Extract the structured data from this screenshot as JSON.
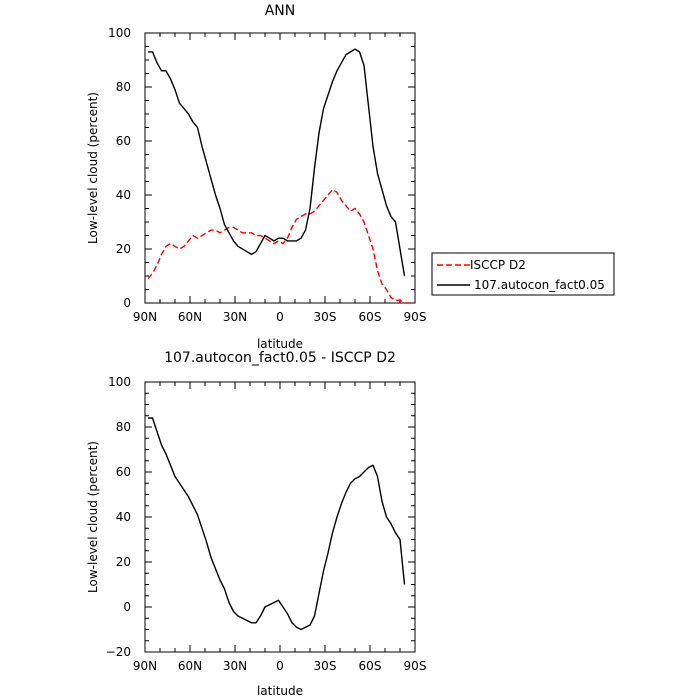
{
  "chart_data": [
    {
      "type": "line",
      "title": "ANN",
      "xlabel": "latitude",
      "ylabel": "Low-level cloud (percent)",
      "x_reversed": true,
      "xlim": [
        90,
        -90
      ],
      "ylim": [
        0,
        100
      ],
      "xticks": [
        {
          "value": 90,
          "label": "90N"
        },
        {
          "value": 60,
          "label": "60N"
        },
        {
          "value": 30,
          "label": "30N"
        },
        {
          "value": 0,
          "label": "0"
        },
        {
          "value": -30,
          "label": "30S"
        },
        {
          "value": -60,
          "label": "60S"
        },
        {
          "value": -90,
          "label": "90S"
        }
      ],
      "yticks": [
        0,
        20,
        40,
        60,
        80,
        100
      ],
      "legend": {
        "placement": "right",
        "entries": [
          "ISCCP D2",
          "107.autocon_fact0.05"
        ]
      },
      "series": [
        {
          "name": "ISCCP D2",
          "color": "#ff0000",
          "dash": true,
          "x": [
            88,
            85,
            82,
            79,
            76,
            73,
            70,
            67,
            64,
            61,
            58,
            55,
            52,
            49,
            46,
            43,
            40,
            37,
            34,
            31,
            28,
            25,
            22,
            19,
            16,
            13,
            10,
            7,
            4,
            1,
            -2,
            -5,
            -8,
            -11,
            -14,
            -17,
            -20,
            -23,
            -26,
            -29,
            -32,
            -35,
            -38,
            -41,
            -44,
            -47,
            -50,
            -53,
            -56,
            -59,
            -62,
            -65,
            -68,
            -71,
            -74,
            -77,
            -80,
            -83,
            -86,
            -89
          ],
          "y": [
            9,
            11,
            14,
            18,
            21,
            22,
            21,
            20,
            21,
            23,
            25,
            24,
            25,
            26,
            27,
            27,
            26,
            27,
            28,
            28,
            27,
            26,
            26,
            26,
            25,
            25,
            24,
            23,
            22,
            23,
            22,
            24,
            28,
            31,
            32,
            33,
            33,
            34,
            36,
            38,
            40,
            42,
            41,
            38,
            36,
            34,
            35,
            33,
            30,
            25,
            20,
            12,
            7,
            5,
            2,
            1,
            1,
            0,
            0,
            0
          ],
          "labels": [
            "ISCCP D2"
          ]
        },
        {
          "name": "107.autocon_fact0.05",
          "color": "#000000",
          "dash": false,
          "x": [
            88,
            85,
            82,
            79,
            76,
            73,
            70,
            67,
            64,
            61,
            58,
            55,
            52,
            49,
            46,
            43,
            40,
            37,
            34,
            31,
            28,
            25,
            22,
            19,
            16,
            13,
            10,
            7,
            4,
            1,
            -2,
            -5,
            -8,
            -11,
            -14,
            -17,
            -20,
            -23,
            -26,
            -29,
            -32,
            -35,
            -38,
            -41,
            -44,
            -47,
            -50,
            -53,
            -56,
            -59,
            -62,
            -65,
            -68,
            -71,
            -74,
            -77,
            -80,
            -83,
            -86,
            -89
          ],
          "y": [
            93,
            93,
            89,
            86,
            86,
            83,
            79,
            74,
            72,
            70,
            67,
            65,
            58,
            52,
            46,
            40,
            35,
            29,
            26,
            23,
            21,
            20,
            19,
            18,
            19,
            22,
            25,
            24,
            23,
            24,
            24,
            23,
            23,
            23,
            24,
            27,
            35,
            50,
            63,
            72,
            77,
            82,
            86,
            89,
            92,
            93,
            94,
            93,
            88,
            73,
            58,
            48,
            42,
            36,
            32,
            30,
            20,
            10,
            null,
            null
          ]
        }
      ]
    },
    {
      "type": "line",
      "title": "107.autocon_fact0.05 - ISCCP D2",
      "xlabel": "latitude",
      "ylabel": "Low-level cloud (percent)",
      "x_reversed": true,
      "xlim": [
        90,
        -90
      ],
      "ylim": [
        -20,
        100
      ],
      "xticks": [
        {
          "value": 90,
          "label": "90N"
        },
        {
          "value": 60,
          "label": "60N"
        },
        {
          "value": 30,
          "label": "30N"
        },
        {
          "value": 0,
          "label": "0"
        },
        {
          "value": -30,
          "label": "30S"
        },
        {
          "value": -60,
          "label": "60S"
        },
        {
          "value": -90,
          "label": "90S"
        }
      ],
      "yticks": [
        -20,
        0,
        20,
        40,
        60,
        80,
        100
      ],
      "series": [
        {
          "color": "#000000",
          "dash": false,
          "x": [
            88,
            85,
            82,
            79,
            76,
            73,
            70,
            67,
            64,
            61,
            58,
            55,
            52,
            49,
            46,
            43,
            40,
            37,
            34,
            31,
            28,
            25,
            22,
            19,
            16,
            13,
            10,
            7,
            4,
            1,
            -2,
            -5,
            -8,
            -11,
            -14,
            -17,
            -20,
            -23,
            -26,
            -29,
            -32,
            -35,
            -38,
            -41,
            -44,
            -47,
            -50,
            -53,
            -56,
            -59,
            -62,
            -65,
            -68,
            -71,
            -74,
            -77,
            -80,
            -83,
            -86,
            -89
          ],
          "y": [
            84,
            84,
            78,
            72,
            68,
            63,
            58,
            55,
            52,
            49,
            45,
            41,
            35,
            29,
            22,
            17,
            12,
            8,
            2,
            -2,
            -4,
            -5,
            -6,
            -7,
            -7,
            -4,
            0,
            1,
            2,
            3,
            0,
            -3,
            -7,
            -9,
            -10,
            -9,
            -8,
            -4,
            6,
            16,
            24,
            33,
            40,
            46,
            51,
            55,
            57,
            58,
            60,
            62,
            63,
            58,
            47,
            40,
            37,
            33,
            30,
            10,
            null,
            null
          ]
        }
      ]
    }
  ]
}
